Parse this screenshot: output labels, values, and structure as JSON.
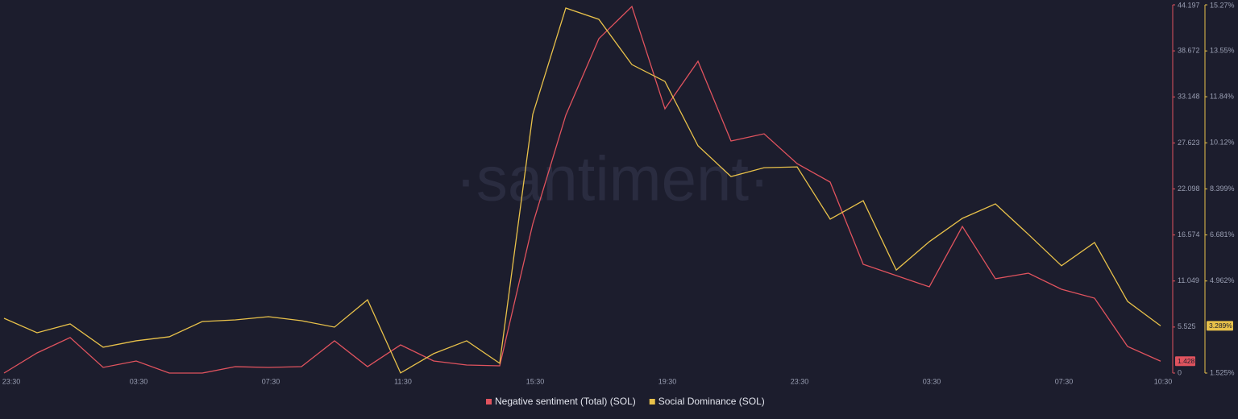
{
  "chart_data": {
    "type": "line",
    "watermark": "·santiment·",
    "categories": [
      "23:30",
      null,
      null,
      null,
      "03:30",
      null,
      null,
      null,
      "07:30",
      null,
      null,
      null,
      "11:30",
      null,
      null,
      null,
      "15:30",
      null,
      null,
      null,
      "19:30",
      null,
      null,
      null,
      "23:30",
      null,
      null,
      null,
      "03:30",
      null,
      null,
      null,
      "07:30",
      null,
      null,
      "10:30"
    ],
    "series": [
      {
        "name": "Negative sentiment (Total) (SOL)",
        "color": "#e0535e",
        "axis": "y",
        "current_label": "1.428",
        "values": [
          0,
          2.42,
          4.26,
          0.68,
          1.45,
          0,
          0,
          0.77,
          0.68,
          0.77,
          3.87,
          0.77,
          3.38,
          1.45,
          0.97,
          0.87,
          17.89,
          30.95,
          40.14,
          44.0,
          31.72,
          37.43,
          27.85,
          28.72,
          25.14,
          22.92,
          13.06,
          11.7,
          10.35,
          17.6,
          11.32,
          11.99,
          10.06,
          8.99,
          3.19,
          1.428
        ]
      },
      {
        "name": "Social Dominance (SOL)",
        "color": "#e8c14a",
        "axis": "y2",
        "current_label": "3.289%",
        "values": [
          3.57,
          3.03,
          3.36,
          2.49,
          2.73,
          2.88,
          3.45,
          3.51,
          3.63,
          3.48,
          3.24,
          4.26,
          1.53,
          2.25,
          2.73,
          1.89,
          11.18,
          15.15,
          14.73,
          13.04,
          12.41,
          10.01,
          8.86,
          9.19,
          9.22,
          7.27,
          7.96,
          5.37,
          6.43,
          7.3,
          7.84,
          6.7,
          5.53,
          6.4,
          4.2,
          3.289
        ]
      }
    ],
    "ylim": [
      0,
      44.197
    ],
    "yticks": [
      0,
      5.525,
      11.049,
      16.574,
      22.098,
      27.623,
      33.148,
      38.672,
      44.197
    ],
    "y2lim": [
      1.525,
      15.27
    ],
    "y2ticks": [
      {
        "value": 1.525,
        "label": "1.525%"
      },
      {
        "value": 4.962,
        "label": "4.962%"
      },
      {
        "value": 6.681,
        "label": "6.681%"
      },
      {
        "value": 8.399,
        "label": "8.399%"
      },
      {
        "value": 10.12,
        "label": "10.12%"
      },
      {
        "value": 11.84,
        "label": "11.84%"
      },
      {
        "value": 13.55,
        "label": "13.55%"
      },
      {
        "value": 15.27,
        "label": "15.27%"
      }
    ]
  }
}
